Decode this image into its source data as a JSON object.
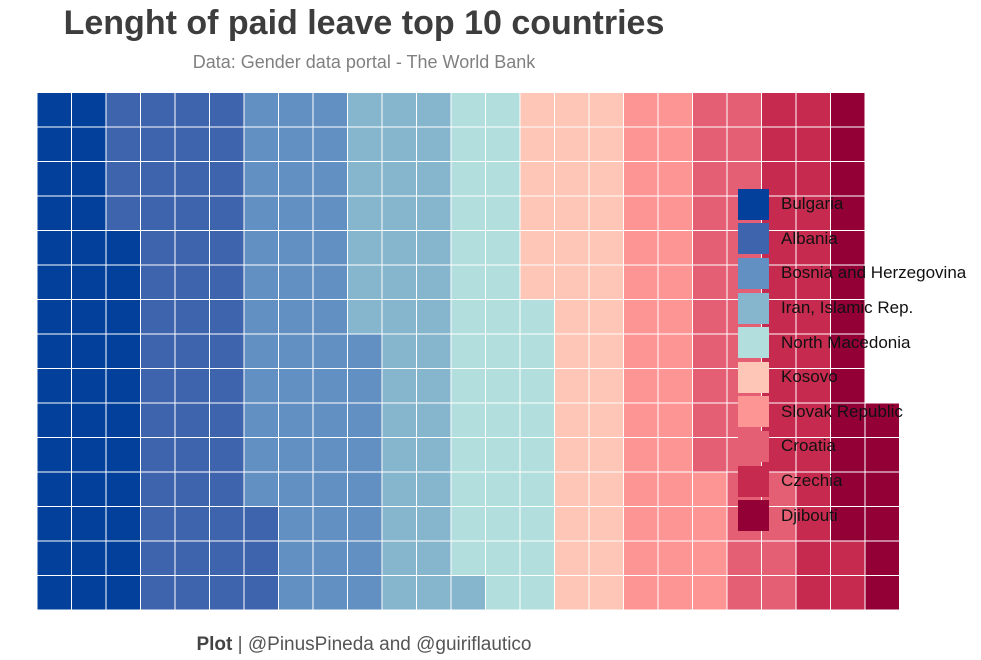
{
  "chart_data": {
    "type": "waffle",
    "title": "Lenght of paid leave top 10 countries",
    "subtitle": "Data: Gender data portal - The World Bank",
    "caption": {
      "strong": "Plot",
      "text": " | @PinusPineda and @guiriflautico"
    },
    "rows": 15,
    "series": [
      {
        "name": "Bulgaria",
        "value": 41,
        "color": "#02409b"
      },
      {
        "name": "Albania",
        "value": 52,
        "color": "#3f64ae"
      },
      {
        "name": "Bosnia and Herzegovina",
        "value": 50,
        "color": "#6390c2"
      },
      {
        "name": "Iran, Islamic Rep.",
        "value": 38,
        "color": "#86b6ce"
      },
      {
        "name": "North Macedonia",
        "value": 38,
        "color": "#b2dfdd"
      },
      {
        "name": "Kosovo",
        "value": 36,
        "color": "#fdc6b6"
      },
      {
        "name": "Slovak Republic",
        "value": 34,
        "color": "#fd9595"
      },
      {
        "name": "Croatia",
        "value": 30,
        "color": "#e45f73"
      },
      {
        "name": "Czechia",
        "value": 28,
        "color": "#c72a4f"
      },
      {
        "name": "Djibouti",
        "value": 19,
        "color": "#930035"
      }
    ],
    "legend_position": "right"
  }
}
